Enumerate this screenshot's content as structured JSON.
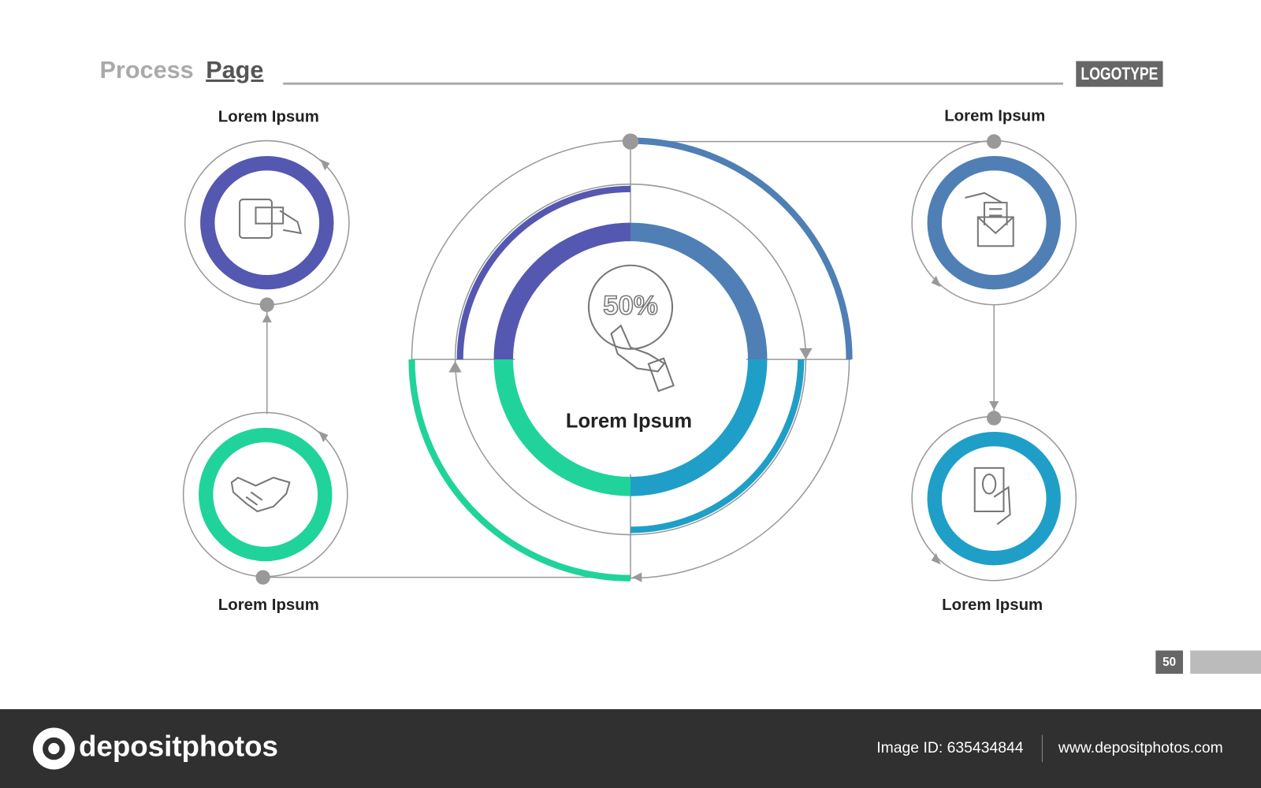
{
  "header": {
    "title_light": "Process",
    "title_bold": "Page",
    "logo": "LOGOTYPE"
  },
  "center": {
    "badge": "50%",
    "label": "Lorem Ipsum"
  },
  "nodes": [
    {
      "label": "Lorem Ipsum"
    },
    {
      "label": "Lorem Ipsum"
    },
    {
      "label": "Lorem Ipsum"
    },
    {
      "label": "Lorem Ipsum"
    }
  ],
  "page_number": "50",
  "footer": {
    "brand": "depositphotos",
    "image_id": "Image ID: 635434844",
    "url": "www.depositphotos.com"
  }
}
